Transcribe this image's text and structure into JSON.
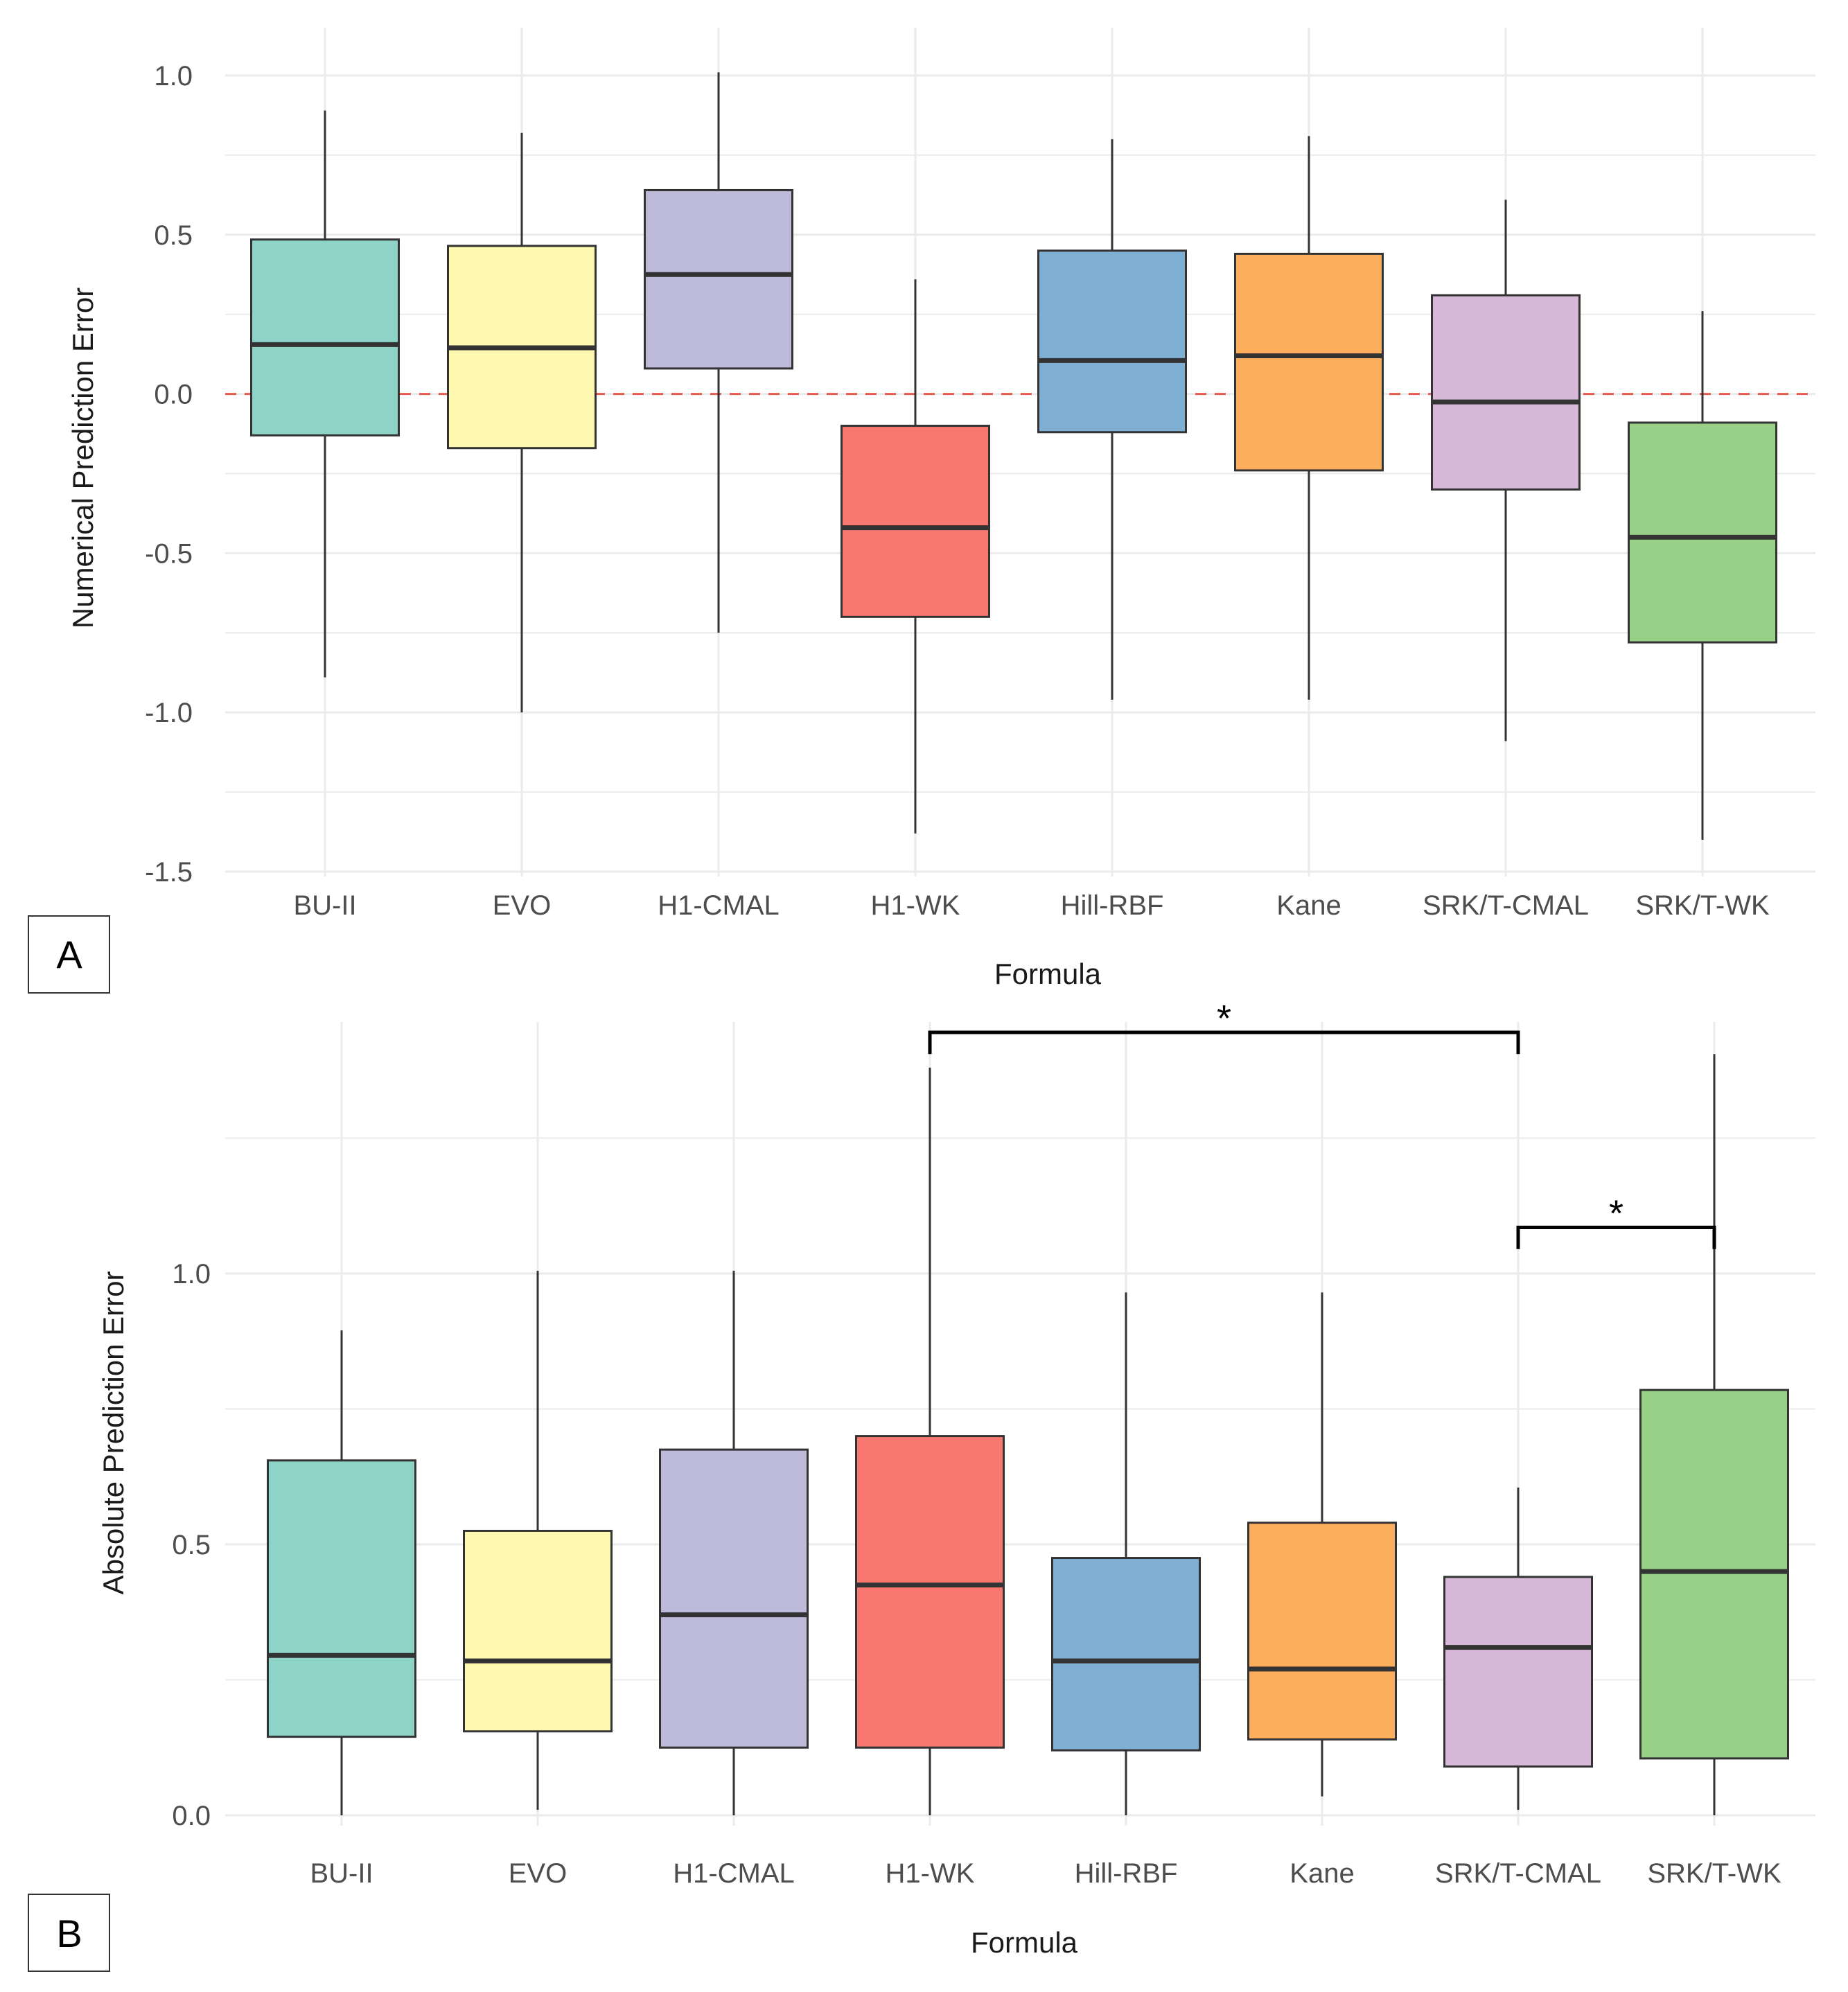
{
  "chart_data": [
    {
      "type": "boxplot",
      "panel_label": "A",
      "xlabel": "Formula",
      "ylabel": "Numerical Prediction Error",
      "ylim": [
        -1.5,
        1.0
      ],
      "yticks": [
        1.0,
        0.5,
        0.0,
        -0.5,
        -1.0,
        -1.5
      ],
      "ytick_labels": [
        "1.0",
        "0.5",
        "0.0",
        "-0.5",
        "-1.0",
        "-1.5"
      ],
      "reference_line": {
        "y": 0,
        "style": "dashed",
        "color": "#e8584f"
      },
      "categories": [
        "BU-II",
        "EVO",
        "H1-CMAL",
        "H1-WK",
        "Hill-RBF",
        "Kane",
        "SRK/T-CMAL",
        "SRK/T-WK"
      ],
      "boxes": [
        {
          "name": "BU-II",
          "whisker_low": -0.89,
          "q1": -0.13,
          "median": 0.155,
          "q3": 0.485,
          "whisker_high": 0.89,
          "color": "#8dd3c7"
        },
        {
          "name": "EVO",
          "whisker_low": -1.0,
          "q1": -0.17,
          "median": 0.145,
          "q3": 0.465,
          "whisker_high": 0.82,
          "color": "#fff8b0"
        },
        {
          "name": "H1-CMAL",
          "whisker_low": -0.75,
          "q1": 0.08,
          "median": 0.375,
          "q3": 0.64,
          "whisker_high": 1.01,
          "color": "#bebada"
        },
        {
          "name": "H1-WK",
          "whisker_low": -1.38,
          "q1": -0.7,
          "median": -0.42,
          "q3": -0.1,
          "whisker_high": 0.36,
          "color": "#f8786f"
        },
        {
          "name": "Hill-RBF",
          "whisker_low": -0.96,
          "q1": -0.12,
          "median": 0.105,
          "q3": 0.45,
          "whisker_high": 0.8,
          "color": "#7fafd2"
        },
        {
          "name": "Kane",
          "whisker_low": -0.96,
          "q1": -0.24,
          "median": 0.12,
          "q3": 0.44,
          "whisker_high": 0.81,
          "color": "#fdae5c"
        },
        {
          "name": "SRK/T-CMAL",
          "whisker_low": -1.09,
          "q1": -0.3,
          "median": -0.025,
          "q3": 0.31,
          "whisker_high": 0.61,
          "color": "#d8b8d9"
        },
        {
          "name": "SRK/T-WK",
          "whisker_low": -1.4,
          "q1": -0.78,
          "median": -0.45,
          "q3": -0.09,
          "whisker_high": 0.26,
          "color": "#98d087"
        }
      ]
    },
    {
      "type": "boxplot",
      "panel_label": "B",
      "xlabel": "Formula",
      "ylabel": "Absolute Prediction Error",
      "ylim": [
        0.0,
        1.4
      ],
      "yticks": [
        1.0,
        0.5,
        0.0
      ],
      "ytick_labels": [
        "1.0",
        "0.5",
        "0.0"
      ],
      "categories": [
        "BU-II",
        "EVO",
        "H1-CMAL",
        "H1-WK",
        "Hill-RBF",
        "Kane",
        "SRK/T-CMAL",
        "SRK/T-WK"
      ],
      "boxes": [
        {
          "name": "BU-II",
          "whisker_low": 0.0,
          "q1": 0.145,
          "median": 0.295,
          "q3": 0.655,
          "whisker_high": 0.895,
          "color": "#8dd3c7"
        },
        {
          "name": "EVO",
          "whisker_low": 0.01,
          "q1": 0.155,
          "median": 0.285,
          "q3": 0.525,
          "whisker_high": 1.005,
          "color": "#fff8b0"
        },
        {
          "name": "H1-CMAL",
          "whisker_low": 0.0,
          "q1": 0.125,
          "median": 0.37,
          "q3": 0.675,
          "whisker_high": 1.005,
          "color": "#bebada"
        },
        {
          "name": "H1-WK",
          "whisker_low": 0.0,
          "q1": 0.125,
          "median": 0.425,
          "q3": 0.7,
          "whisker_high": 1.38,
          "color": "#f8786f"
        },
        {
          "name": "Hill-RBF",
          "whisker_low": 0.0,
          "q1": 0.12,
          "median": 0.285,
          "q3": 0.475,
          "whisker_high": 0.965,
          "color": "#7fafd2"
        },
        {
          "name": "Kane",
          "whisker_low": 0.035,
          "q1": 0.14,
          "median": 0.27,
          "q3": 0.54,
          "whisker_high": 0.965,
          "color": "#fdae5c"
        },
        {
          "name": "SRK/T-CMAL",
          "whisker_low": 0.01,
          "q1": 0.09,
          "median": 0.31,
          "q3": 0.44,
          "whisker_high": 0.605,
          "color": "#d8b8d9"
        },
        {
          "name": "SRK/T-WK",
          "whisker_low": 0.0,
          "q1": 0.105,
          "median": 0.45,
          "q3": 0.785,
          "whisker_high": 1.405,
          "color": "#98d087"
        }
      ],
      "significance": [
        {
          "from": "H1-WK",
          "to": "SRK/T-CMAL",
          "label": "*",
          "y": 1.445,
          "drop_to": 1.405
        },
        {
          "from": "SRK/T-CMAL",
          "to": "SRK/T-WK",
          "label": "*",
          "y": 1.085,
          "drop_to": 1.045
        }
      ]
    }
  ]
}
